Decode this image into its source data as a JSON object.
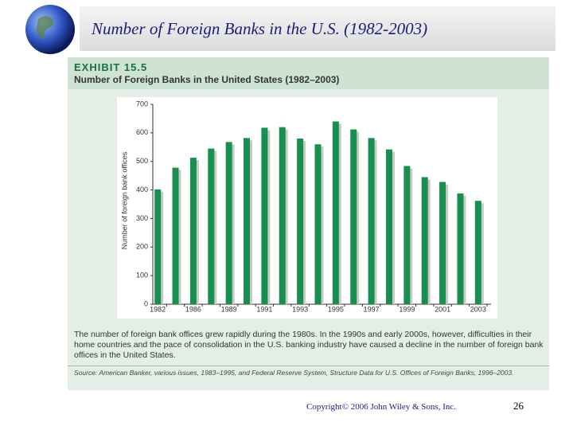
{
  "slide": {
    "title": "Number of Foreign Banks in the U.S. (1982-2003)",
    "copyright": "Copyright© 2006 John Wiley & Sons, Inc.",
    "page": "26"
  },
  "exhibit": {
    "label": "EXHIBIT 15.5",
    "heading": "Number of Foreign Banks in the United States (1982–2003)",
    "caption": "The number of foreign bank offices grew rapidly during the 1980s. In the 1990s and early 2000s, however, difficulties in their home countries and the pace of consolidation in the U.S. banking industry have caused a decline in the number of foreign bank offices in the United States.",
    "source": "Source: American Banker, various issues, 1983–1995, and Federal Reserve System, Structure Data for U.S. Offices of Foreign Banks, 1996–2003."
  },
  "chart_data": {
    "type": "bar",
    "y_label": "Number of foreign bank offices",
    "categories": [
      "1982",
      null,
      "1986",
      null,
      "1989",
      null,
      "1991",
      null,
      "1993",
      null,
      "1995",
      null,
      "1997",
      null,
      "1999",
      null,
      "2001",
      null,
      "2003"
    ],
    "values": [
      402,
      478,
      513,
      545,
      568,
      582,
      618,
      620,
      580,
      560,
      640,
      612,
      582,
      542,
      484,
      445,
      428,
      388,
      362
    ],
    "color": "#17904e",
    "ylim": [
      0,
      700
    ],
    "yticks": [
      0,
      100,
      200,
      300,
      400,
      500,
      600,
      700
    ]
  }
}
